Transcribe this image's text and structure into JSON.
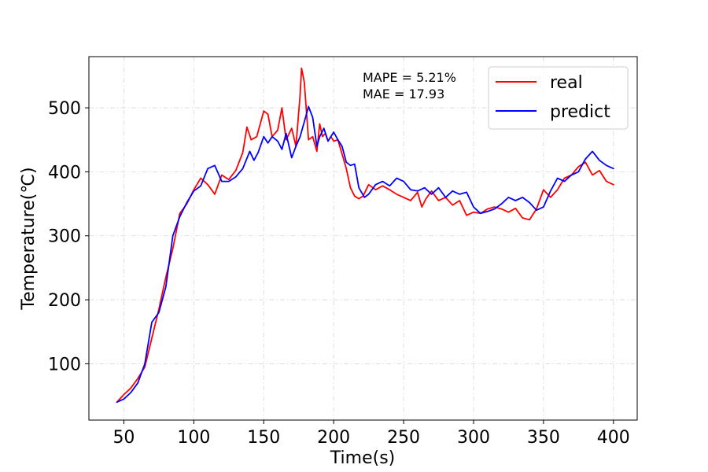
{
  "chart_data": {
    "type": "line",
    "xlabel": "Time(s)",
    "ylabel": "Temperature(℃)",
    "xlim": [
      25,
      417
    ],
    "ylim": [
      12,
      580
    ],
    "xticks": [
      50,
      100,
      150,
      200,
      250,
      300,
      350,
      400
    ],
    "yticks": [
      100,
      200,
      300,
      400,
      500
    ],
    "grid": true,
    "legend_position": "top-right",
    "annotations": [
      "MAPE = 5.21%",
      "MAE = 17.93"
    ],
    "series": [
      {
        "name": "real",
        "color": "#ff0000",
        "x": [
          45,
          50,
          55,
          60,
          65,
          70,
          75,
          80,
          85,
          90,
          95,
          100,
          105,
          110,
          115,
          120,
          125,
          130,
          135,
          138,
          141,
          145,
          150,
          153,
          156,
          160,
          163,
          166,
          170,
          173,
          176,
          177,
          179,
          182,
          185,
          188,
          190,
          192,
          194,
          196,
          198,
          200,
          203,
          206,
          209,
          212,
          215,
          218,
          221,
          225,
          230,
          235,
          240,
          245,
          250,
          255,
          260,
          263,
          266,
          270,
          275,
          280,
          285,
          290,
          295,
          300,
          305,
          310,
          315,
          320,
          325,
          330,
          335,
          340,
          345,
          350,
          355,
          360,
          365,
          370,
          375,
          380,
          385,
          390,
          395,
          400
        ],
        "y": [
          40,
          52,
          62,
          77,
          95,
          140,
          185,
          235,
          280,
          335,
          350,
          372,
          390,
          380,
          365,
          395,
          388,
          402,
          430,
          470,
          450,
          455,
          495,
          490,
          455,
          465,
          500,
          450,
          468,
          440,
          520,
          562,
          540,
          450,
          455,
          432,
          475,
          455,
          460,
          448,
          455,
          448,
          450,
          428,
          405,
          375,
          362,
          358,
          362,
          380,
          372,
          378,
          372,
          365,
          360,
          355,
          368,
          345,
          358,
          370,
          355,
          360,
          348,
          355,
          332,
          337,
          335,
          342,
          345,
          342,
          337,
          343,
          328,
          325,
          342,
          372,
          360,
          372,
          390,
          395,
          408,
          415,
          395,
          402,
          385,
          380
        ]
      },
      {
        "name": "predict",
        "color": "#0000ff",
        "x": [
          45,
          50,
          55,
          60,
          65,
          70,
          75,
          80,
          85,
          90,
          95,
          100,
          105,
          110,
          115,
          120,
          125,
          130,
          135,
          140,
          143,
          146,
          150,
          153,
          156,
          160,
          163,
          166,
          170,
          173,
          176,
          179,
          182,
          185,
          188,
          190,
          193,
          196,
          200,
          203,
          206,
          209,
          212,
          215,
          218,
          222,
          225,
          230,
          235,
          240,
          245,
          250,
          255,
          260,
          265,
          270,
          275,
          280,
          285,
          290,
          295,
          300,
          305,
          310,
          315,
          320,
          325,
          330,
          335,
          340,
          345,
          350,
          355,
          360,
          365,
          370,
          375,
          380,
          385,
          390,
          395,
          400
        ],
        "y": [
          40,
          45,
          55,
          70,
          100,
          165,
          180,
          220,
          300,
          330,
          352,
          370,
          378,
          405,
          410,
          385,
          385,
          392,
          405,
          432,
          418,
          430,
          455,
          445,
          455,
          448,
          435,
          460,
          422,
          440,
          455,
          478,
          502,
          485,
          440,
          455,
          468,
          448,
          462,
          450,
          440,
          415,
          410,
          412,
          375,
          360,
          365,
          380,
          385,
          378,
          390,
          385,
          372,
          370,
          375,
          365,
          375,
          360,
          370,
          365,
          368,
          345,
          335,
          338,
          342,
          350,
          360,
          355,
          360,
          352,
          340,
          345,
          370,
          390,
          385,
          395,
          400,
          420,
          432,
          418,
          410,
          405
        ]
      }
    ]
  }
}
